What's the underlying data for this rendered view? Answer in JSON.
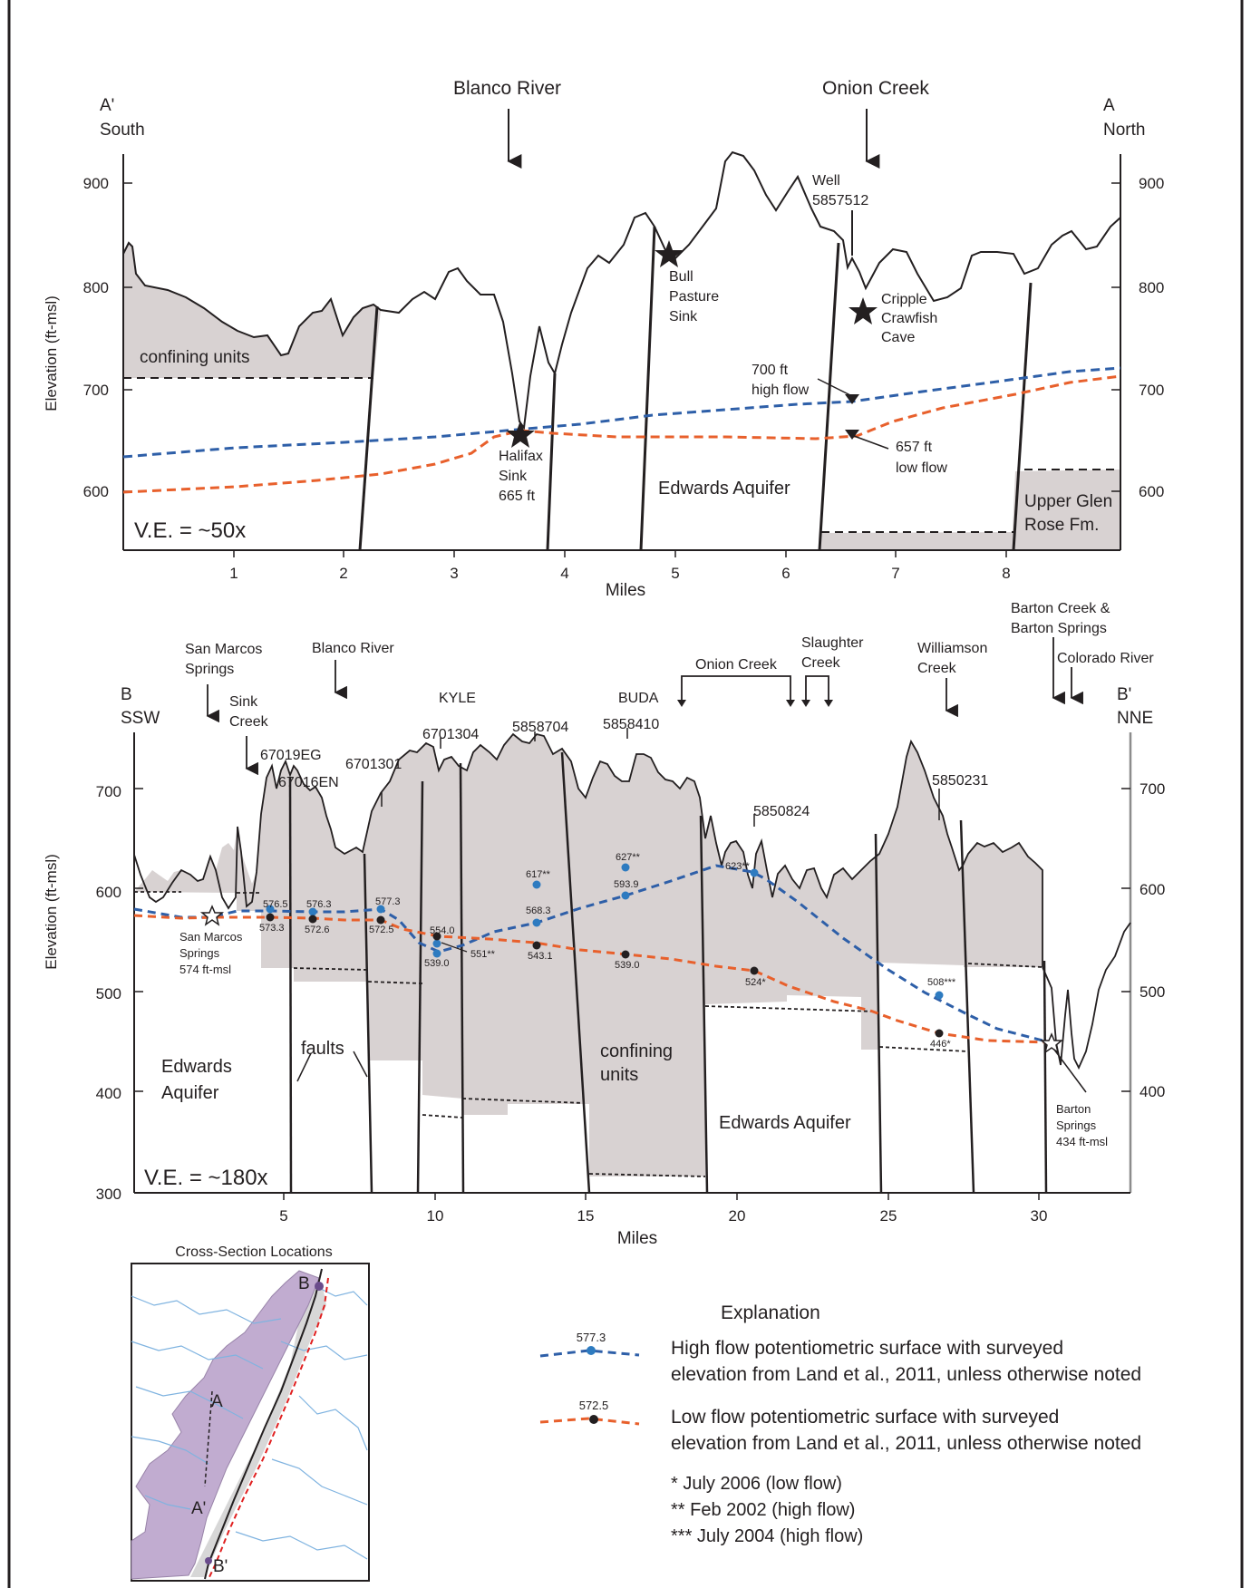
{
  "top_section": {
    "left_end_letter": "A'",
    "left_end_dir": "South",
    "right_end_letter": "A",
    "right_end_dir": "North",
    "stream_blanco": "Blanco River",
    "stream_onion": "Onion Creek",
    "y_axis_label": "Elevation (ft-msl)",
    "y_ticks": [
      "600",
      "700",
      "800",
      "900"
    ],
    "x_ticks": [
      "1",
      "2",
      "3",
      "4",
      "5",
      "6",
      "7",
      "8"
    ],
    "x_axis_label": "Miles",
    "confining_label": "confining units",
    "aquifer_label": "Edwards Aquifer",
    "upper_glen_rose_1": "Upper Glen",
    "upper_glen_rose_2": "Rose Fm.",
    "ve_label": "V.E. = ~50x",
    "well_1": "Well",
    "well_2": "5857512",
    "bull_1": "Bull",
    "bull_2": "Pasture",
    "bull_3": "Sink",
    "cripple_1": "Cripple",
    "cripple_2": "Crawfish",
    "cave": "Cave",
    "halifax_1": "Halifax",
    "halifax_2": "Sink",
    "halifax_3": "665 ft",
    "high_1": "700 ft",
    "high_2": "high flow",
    "low_1": "657 ft",
    "low_2": "low flow"
  },
  "bottom_section": {
    "left_end_letter": "B",
    "left_end_dir": "SSW",
    "right_end_letter": "B'",
    "right_end_dir": "NNE",
    "y_axis_label": "Elevation (ft-msl)",
    "y_ticks": [
      "300",
      "400",
      "500",
      "600",
      "700"
    ],
    "x_ticks": [
      "5",
      "10",
      "15",
      "20",
      "25",
      "30"
    ],
    "x_axis_label": "Miles",
    "ve_label": "V.E. = ~180x",
    "sm_springs_1": "San Marcos",
    "sm_springs_2": "Springs",
    "sink_1": "Sink",
    "sink_2": "Creek",
    "blanco": "Blanco River",
    "kyle": "KYLE",
    "buda": "BUDA",
    "onion": "Onion Creek",
    "slaughter_1": "Slaughter",
    "slaughter_2": "Creek",
    "williamson_1": "Williamson",
    "williamson_2": "Creek",
    "barton_1": "Barton Creek &",
    "barton_2": "Barton Springs",
    "colorado": "Colorado River",
    "wells": [
      "67019EG",
      "67016EN",
      "6701301",
      "6701304",
      "5858704",
      "5858410",
      "5850824",
      "5850231"
    ],
    "edwards_left_1": "Edwards",
    "edwards_left_2": "Aquifer",
    "faults": "faults",
    "confining_1": "confining",
    "confining_2": "units",
    "edwards_right": "Edwards Aquifer",
    "smspr_1": "San Marcos",
    "smspr_2": "Springs",
    "smspr_3": "574 ft-msl",
    "bsp_1": "Barton",
    "bsp_2": "Springs",
    "bsp_3": "434 ft-msl",
    "high_labels": [
      "576.5",
      "576.3",
      "577.3",
      "554.0",
      "617**",
      "568.3",
      "627**",
      "593.9",
      "623**",
      "508***"
    ],
    "low_labels": [
      "573.3",
      "572.6",
      "572.5",
      "539.0",
      "551**",
      "543.1",
      "539.0",
      "524*",
      "446*"
    ]
  },
  "inset_map": {
    "title": "Cross-Section Locations",
    "label_B": "B",
    "label_A": "A",
    "label_A_prime": "A'",
    "label_B_prime": "B'"
  },
  "legend": {
    "title": "Explanation",
    "high_value": "577.3",
    "high_text_1": "High flow potentiometric surface with surveyed",
    "high_text_2": "elevation from Land et al., 2011, unless otherwise noted",
    "low_value": "572.5",
    "low_text_1": "Low flow potentiometric surface with surveyed",
    "low_text_2": "elevation from Land et al., 2011, unless otherwise noted",
    "note_1": "* July 2006 (low flow)",
    "note_2": "** Feb 2002 (high flow)",
    "note_3": "*** July 2004 (high flow)"
  },
  "colors": {
    "high_flow": "#2e5fa8",
    "low_flow": "#e8602c",
    "confining_fill": "#d8d2d2",
    "map_purple": "#c1acd0",
    "map_gray": "#d7d7d7",
    "map_streams": "#7fb3e0",
    "frame": "#231f20"
  }
}
